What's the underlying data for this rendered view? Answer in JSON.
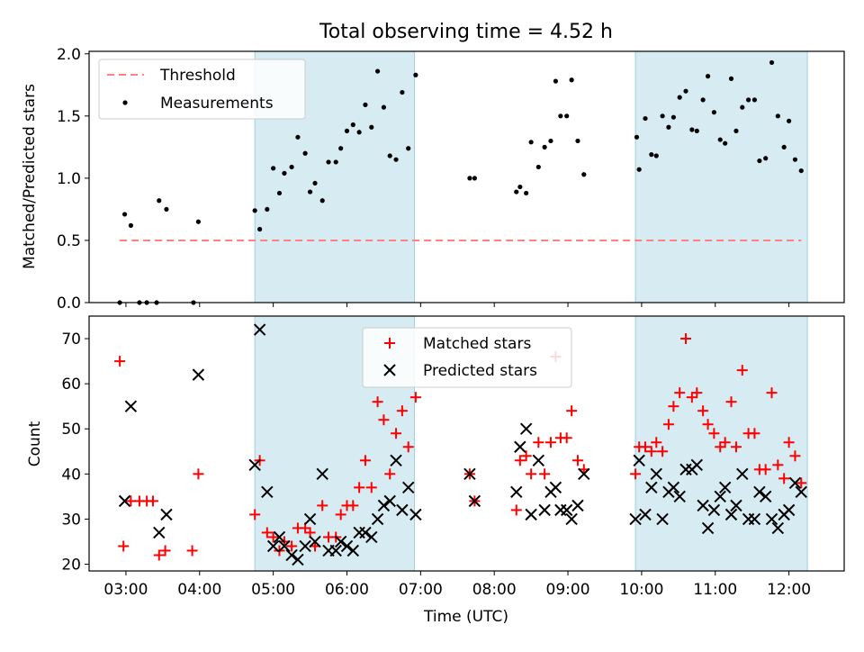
{
  "figure_title": "Total observing time = 4.52 h",
  "chart_data": [
    {
      "type": "scatter",
      "title": "Total observing time = 4.52 h",
      "xlabel": "",
      "ylabel": "Matched/Predicted stars",
      "xlim": [
        "02:30",
        "12:45"
      ],
      "ylim": [
        0,
        2.02
      ],
      "yticks": [
        0.0,
        0.5,
        1.0,
        1.5,
        2.0
      ],
      "ytick_labels": [
        "0.0",
        "0.5",
        "1.0",
        "1.5",
        "2.0"
      ],
      "grid": false,
      "legend": "upper-left",
      "shaded_intervals": [
        [
          "04:45",
          "06:55"
        ],
        [
          "09:55",
          "12:15"
        ]
      ],
      "threshold": {
        "name": "Threshold",
        "value": 0.5,
        "x_start": "02:55",
        "x_end": "12:10",
        "color": "#ff8080"
      },
      "series": [
        {
          "name": "Measurements",
          "color": "#000000",
          "points": [
            [
              "02:55",
              0.0
            ],
            [
              "02:59",
              0.71
            ],
            [
              "03:04",
              0.62
            ],
            [
              "03:11",
              0.0
            ],
            [
              "03:17",
              0.0
            ],
            [
              "03:25",
              0.0
            ],
            [
              "03:27",
              0.82
            ],
            [
              "03:33",
              0.75
            ],
            [
              "03:55",
              0.0
            ],
            [
              "03:59",
              0.65
            ],
            [
              "04:45",
              0.74
            ],
            [
              "04:49",
              0.59
            ],
            [
              "04:55",
              0.75
            ],
            [
              "05:00",
              1.08
            ],
            [
              "05:05",
              0.88
            ],
            [
              "05:09",
              1.04
            ],
            [
              "05:15",
              1.09
            ],
            [
              "05:20",
              1.33
            ],
            [
              "05:26",
              1.2
            ],
            [
              "05:30",
              0.89
            ],
            [
              "05:34",
              0.96
            ],
            [
              "05:40",
              0.82
            ],
            [
              "05:45",
              1.13
            ],
            [
              "05:51",
              1.13
            ],
            [
              "05:55",
              1.24
            ],
            [
              "06:00",
              1.38
            ],
            [
              "06:05",
              1.43
            ],
            [
              "06:10",
              1.37
            ],
            [
              "06:15",
              1.59
            ],
            [
              "06:20",
              1.41
            ],
            [
              "06:25",
              1.86
            ],
            [
              "06:30",
              1.57
            ],
            [
              "06:35",
              1.18
            ],
            [
              "06:40",
              1.15
            ],
            [
              "06:45",
              1.69
            ],
            [
              "06:50",
              1.24
            ],
            [
              "06:56",
              1.83
            ],
            [
              "07:40",
              1.0
            ],
            [
              "07:44",
              1.0
            ],
            [
              "08:18",
              0.89
            ],
            [
              "08:21",
              0.93
            ],
            [
              "08:26",
              0.88
            ],
            [
              "08:30",
              1.29
            ],
            [
              "08:36",
              1.09
            ],
            [
              "08:41",
              1.25
            ],
            [
              "08:46",
              1.3
            ],
            [
              "08:50",
              1.78
            ],
            [
              "08:54",
              1.5
            ],
            [
              "08:59",
              1.5
            ],
            [
              "09:03",
              1.79
            ],
            [
              "09:08",
              1.3
            ],
            [
              "09:13",
              1.03
            ],
            [
              "09:56",
              1.33
            ],
            [
              "09:58",
              1.07
            ],
            [
              "10:03",
              1.48
            ],
            [
              "10:08",
              1.19
            ],
            [
              "10:12",
              1.18
            ],
            [
              "10:17",
              1.5
            ],
            [
              "10:22",
              1.41
            ],
            [
              "10:26",
              1.49
            ],
            [
              "10:31",
              1.65
            ],
            [
              "10:36",
              1.7
            ],
            [
              "10:41",
              1.39
            ],
            [
              "10:45",
              1.38
            ],
            [
              "10:50",
              1.63
            ],
            [
              "10:54",
              1.82
            ],
            [
              "10:59",
              1.53
            ],
            [
              "11:04",
              1.31
            ],
            [
              "11:08",
              1.28
            ],
            [
              "11:13",
              1.8
            ],
            [
              "11:17",
              1.38
            ],
            [
              "11:22",
              1.57
            ],
            [
              "11:27",
              1.63
            ],
            [
              "11:32",
              1.63
            ],
            [
              "11:36",
              1.14
            ],
            [
              "11:41",
              1.16
            ],
            [
              "11:46",
              1.93
            ],
            [
              "11:51",
              1.5
            ],
            [
              "11:56",
              1.25
            ],
            [
              "12:00",
              1.46
            ],
            [
              "12:05",
              1.15
            ],
            [
              "12:10",
              1.06
            ]
          ]
        }
      ]
    },
    {
      "type": "scatter",
      "title": "",
      "xlabel": "Time (UTC)",
      "ylabel": "Count",
      "xlim": [
        "02:30",
        "12:45"
      ],
      "ylim": [
        18.5,
        75
      ],
      "xticks": [
        "03:00",
        "04:00",
        "05:00",
        "06:00",
        "07:00",
        "08:00",
        "09:00",
        "10:00",
        "11:00",
        "12:00"
      ],
      "yticks": [
        20,
        30,
        40,
        50,
        60,
        70
      ],
      "ytick_labels": [
        "20",
        "30",
        "40",
        "50",
        "60",
        "70"
      ],
      "grid": false,
      "legend": "upper-center",
      "shaded_intervals": [
        [
          "04:45",
          "06:55"
        ],
        [
          "09:55",
          "12:15"
        ]
      ],
      "series": [
        {
          "name": "Matched stars",
          "color": "#ff0000",
          "marker": "plus",
          "points": [
            [
              "02:55",
              65
            ],
            [
              "02:58",
              24
            ],
            [
              "03:04",
              34
            ],
            [
              "03:11",
              34
            ],
            [
              "03:17",
              34
            ],
            [
              "03:22",
              34
            ],
            [
              "03:27",
              22
            ],
            [
              "03:32",
              23
            ],
            [
              "03:54",
              23
            ],
            [
              "03:59",
              40
            ],
            [
              "04:45",
              31
            ],
            [
              "04:49",
              43
            ],
            [
              "04:55",
              27
            ],
            [
              "05:00",
              26
            ],
            [
              "05:05",
              23
            ],
            [
              "05:09",
              25
            ],
            [
              "05:15",
              24
            ],
            [
              "05:20",
              28
            ],
            [
              "05:26",
              28
            ],
            [
              "05:30",
              27
            ],
            [
              "05:34",
              24
            ],
            [
              "05:40",
              33
            ],
            [
              "05:45",
              26
            ],
            [
              "05:51",
              26
            ],
            [
              "05:55",
              31
            ],
            [
              "06:00",
              33
            ],
            [
              "06:05",
              33
            ],
            [
              "06:10",
              37
            ],
            [
              "06:15",
              43
            ],
            [
              "06:20",
              37
            ],
            [
              "06:25",
              56
            ],
            [
              "06:30",
              52
            ],
            [
              "06:35",
              40
            ],
            [
              "06:40",
              49
            ],
            [
              "06:45",
              54
            ],
            [
              "06:50",
              46
            ],
            [
              "06:56",
              57
            ],
            [
              "07:40",
              40
            ],
            [
              "07:44",
              34
            ],
            [
              "08:18",
              32
            ],
            [
              "08:21",
              43
            ],
            [
              "08:26",
              44
            ],
            [
              "08:30",
              40
            ],
            [
              "08:36",
              47
            ],
            [
              "08:41",
              40
            ],
            [
              "08:46",
              47
            ],
            [
              "08:50",
              66
            ],
            [
              "08:54",
              48
            ],
            [
              "08:59",
              48
            ],
            [
              "09:03",
              54
            ],
            [
              "09:08",
              43
            ],
            [
              "09:13",
              41
            ],
            [
              "09:55",
              40
            ],
            [
              "09:58",
              46
            ],
            [
              "10:03",
              46
            ],
            [
              "10:08",
              45
            ],
            [
              "10:12",
              47
            ],
            [
              "10:17",
              45
            ],
            [
              "10:22",
              51
            ],
            [
              "10:26",
              55
            ],
            [
              "10:31",
              58
            ],
            [
              "10:36",
              70
            ],
            [
              "10:41",
              57
            ],
            [
              "10:45",
              58
            ],
            [
              "10:50",
              54
            ],
            [
              "10:54",
              51
            ],
            [
              "10:59",
              49
            ],
            [
              "11:04",
              46
            ],
            [
              "11:08",
              47
            ],
            [
              "11:13",
              56
            ],
            [
              "11:17",
              46
            ],
            [
              "11:22",
              63
            ],
            [
              "11:27",
              49
            ],
            [
              "11:32",
              49
            ],
            [
              "11:36",
              41
            ],
            [
              "11:41",
              41
            ],
            [
              "11:46",
              58
            ],
            [
              "11:51",
              42
            ],
            [
              "11:56",
              39
            ],
            [
              "12:00",
              47
            ],
            [
              "12:05",
              44
            ],
            [
              "12:10",
              38
            ]
          ]
        },
        {
          "name": "Predicted stars",
          "color": "#000000",
          "marker": "x",
          "points": [
            [
              "02:59",
              34
            ],
            [
              "03:04",
              55
            ],
            [
              "03:27",
              27
            ],
            [
              "03:33",
              31
            ],
            [
              "03:59",
              62
            ],
            [
              "04:45",
              42
            ],
            [
              "04:49",
              72
            ],
            [
              "04:55",
              36
            ],
            [
              "05:00",
              24
            ],
            [
              "05:05",
              26
            ],
            [
              "05:09",
              24
            ],
            [
              "05:15",
              22
            ],
            [
              "05:20",
              21
            ],
            [
              "05:26",
              24
            ],
            [
              "05:30",
              30
            ],
            [
              "05:34",
              25
            ],
            [
              "05:40",
              40
            ],
            [
              "05:45",
              23
            ],
            [
              "05:51",
              23
            ],
            [
              "05:55",
              25
            ],
            [
              "06:00",
              24
            ],
            [
              "06:05",
              23
            ],
            [
              "06:10",
              27
            ],
            [
              "06:15",
              27
            ],
            [
              "06:20",
              26
            ],
            [
              "06:25",
              30
            ],
            [
              "06:30",
              33
            ],
            [
              "06:35",
              34
            ],
            [
              "06:40",
              43
            ],
            [
              "06:45",
              32
            ],
            [
              "06:50",
              37
            ],
            [
              "06:56",
              31
            ],
            [
              "07:40",
              40
            ],
            [
              "07:44",
              34
            ],
            [
              "08:18",
              36
            ],
            [
              "08:21",
              46
            ],
            [
              "08:26",
              50
            ],
            [
              "08:30",
              31
            ],
            [
              "08:36",
              43
            ],
            [
              "08:41",
              32
            ],
            [
              "08:46",
              36
            ],
            [
              "08:50",
              37
            ],
            [
              "08:54",
              32
            ],
            [
              "08:59",
              32
            ],
            [
              "09:03",
              30
            ],
            [
              "09:08",
              33
            ],
            [
              "09:13",
              40
            ],
            [
              "09:55",
              30
            ],
            [
              "09:58",
              43
            ],
            [
              "10:03",
              31
            ],
            [
              "10:08",
              37
            ],
            [
              "10:12",
              40
            ],
            [
              "10:17",
              30
            ],
            [
              "10:22",
              36
            ],
            [
              "10:26",
              37
            ],
            [
              "10:31",
              35
            ],
            [
              "10:36",
              41
            ],
            [
              "10:41",
              41
            ],
            [
              "10:45",
              42
            ],
            [
              "10:50",
              33
            ],
            [
              "10:54",
              28
            ],
            [
              "10:59",
              32
            ],
            [
              "11:04",
              35
            ],
            [
              "11:08",
              37
            ],
            [
              "11:13",
              31
            ],
            [
              "11:17",
              33
            ],
            [
              "11:22",
              40
            ],
            [
              "11:27",
              30
            ],
            [
              "11:32",
              30
            ],
            [
              "11:36",
              36
            ],
            [
              "11:41",
              35
            ],
            [
              "11:46",
              30
            ],
            [
              "11:51",
              28
            ],
            [
              "11:56",
              31
            ],
            [
              "12:00",
              32
            ],
            [
              "12:05",
              38
            ],
            [
              "12:10",
              36
            ]
          ]
        }
      ]
    }
  ]
}
